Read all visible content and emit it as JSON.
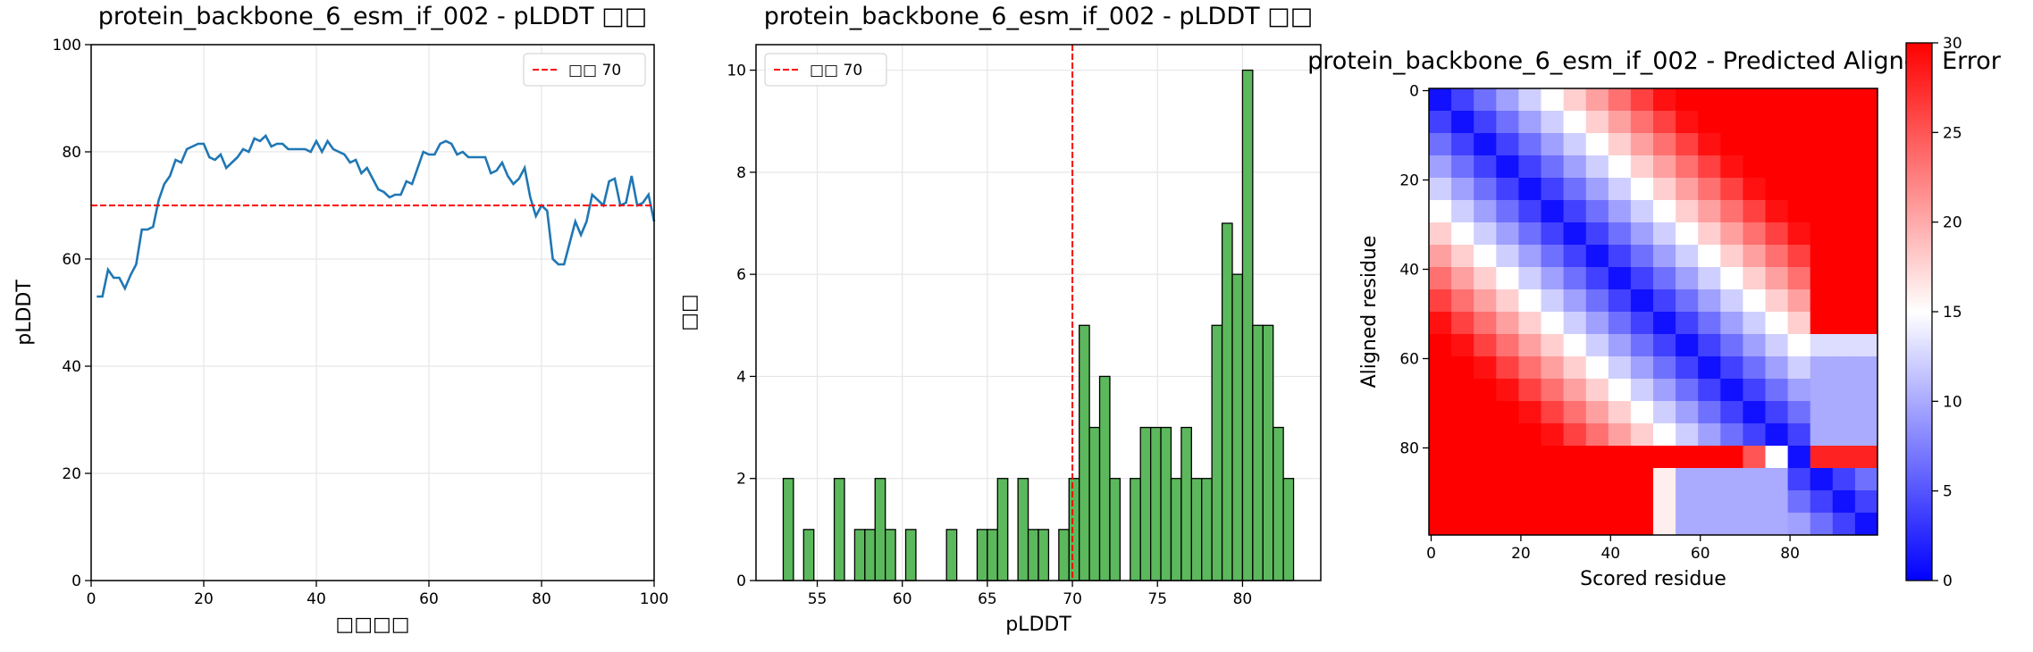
{
  "chart_data": [
    {
      "type": "line",
      "title": "protein_backbone_6_esm_if_002 - pLDDT □□",
      "x_label": "□□□□",
      "y_label": "pLDDT",
      "x": [
        1,
        2,
        3,
        4,
        5,
        6,
        7,
        8,
        9,
        10,
        11,
        12,
        13,
        14,
        15,
        16,
        17,
        18,
        19,
        20,
        21,
        22,
        23,
        24,
        25,
        26,
        27,
        28,
        29,
        30,
        31,
        32,
        33,
        34,
        35,
        36,
        37,
        38,
        39,
        40,
        41,
        42,
        43,
        44,
        45,
        46,
        47,
        48,
        49,
        50,
        51,
        52,
        53,
        54,
        55,
        56,
        57,
        58,
        59,
        60,
        61,
        62,
        63,
        64,
        65,
        66,
        67,
        68,
        69,
        70,
        71,
        72,
        73,
        74,
        75,
        76,
        77,
        78,
        79,
        80,
        81,
        82,
        83,
        84,
        85,
        86,
        87,
        88,
        89,
        90,
        91,
        92,
        93,
        94,
        95,
        96,
        97,
        98,
        99,
        100
      ],
      "values": [
        53,
        53,
        58,
        56.5,
        56.5,
        54.5,
        57,
        59,
        65.5,
        65.5,
        66,
        71,
        74,
        75.5,
        78.5,
        78,
        80.5,
        81,
        81.5,
        81.5,
        79,
        78.5,
        79.5,
        77,
        78,
        79,
        80.5,
        80,
        82.5,
        82,
        83,
        81,
        81.5,
        81.5,
        80.5,
        80.5,
        80.5,
        80.5,
        80,
        82,
        80,
        82,
        80.5,
        80,
        79.5,
        78,
        78.5,
        76,
        77,
        75,
        73,
        72.5,
        71.5,
        72,
        72,
        74.5,
        74,
        77,
        80,
        79.5,
        79.5,
        81.5,
        82,
        81.5,
        79.5,
        80,
        79,
        79,
        79,
        79,
        76,
        76.5,
        78,
        75.5,
        74,
        75,
        77,
        71.5,
        68,
        70,
        69,
        60,
        59,
        59,
        63,
        67,
        64.5,
        67,
        72,
        71,
        70,
        74.5,
        75,
        70,
        70.5,
        75.5,
        70,
        70.5,
        72,
        67
      ],
      "color": "#1f77b4",
      "hline": {
        "value": 70,
        "label": "□□ 70",
        "color": "#ff0000"
      },
      "legend": "upper right",
      "xlim": [
        0,
        100
      ],
      "ylim": [
        0,
        100
      ],
      "xticks": [
        0,
        20,
        40,
        60,
        80,
        100
      ],
      "yticks": [
        0,
        20,
        40,
        60,
        80,
        100
      ],
      "grid": true
    },
    {
      "type": "histogram",
      "title": "protein_backbone_6_esm_if_002 - pLDDT □□",
      "x_label": "pLDDT",
      "y_label": "□□",
      "bins": [
        53,
        53.6,
        54.2,
        54.8,
        55.4,
        56,
        56.6,
        57.2,
        57.8,
        58.4,
        59,
        59.6,
        60.2,
        60.8,
        61.4,
        62,
        62.6,
        63.2,
        63.8,
        64.4,
        65,
        65.6,
        66.2,
        66.8,
        67.4,
        68,
        68.6,
        69.2,
        69.8,
        70.4,
        71,
        71.6,
        72.2,
        72.8,
        73.4,
        74,
        74.6,
        75.2,
        75.8,
        76.4,
        77,
        77.6,
        78.2,
        78.8,
        79.4,
        80,
        80.6,
        81.2,
        81.8,
        82.4,
        83
      ],
      "counts": [
        2,
        0,
        1,
        0,
        0,
        2,
        0,
        1,
        1,
        2,
        1,
        0,
        1,
        0,
        0,
        0,
        1,
        0,
        0,
        1,
        1,
        2,
        0,
        2,
        1,
        1,
        0,
        1,
        2,
        5,
        3,
        4,
        2,
        0,
        2,
        3,
        3,
        3,
        2,
        3,
        2,
        2,
        5,
        7,
        6,
        10,
        5,
        5,
        3,
        2
      ],
      "color": "#5cb85c",
      "edgecolor": "#000000",
      "vline": {
        "value": 70,
        "label": "□□ 70",
        "color": "#ff0000"
      },
      "legend": "upper left",
      "xlim": [
        51.4,
        84.6
      ],
      "ylim": [
        0,
        10.5
      ],
      "xticks": [
        55,
        60,
        65,
        70,
        75,
        80
      ],
      "yticks": [
        0,
        2,
        4,
        6,
        8,
        10
      ],
      "grid": true
    },
    {
      "type": "heatmap",
      "title": "protein_backbone_6_esm_if_002 - Predicted Aligned Error",
      "x_label": "Scored residue",
      "y_label": "Aligned residue",
      "colormap": "bwr",
      "clim": [
        0,
        30
      ],
      "cticks": [
        0,
        5,
        10,
        15,
        20,
        25,
        30
      ],
      "xlim": [
        -0.5,
        99.5
      ],
      "ylim": [
        99.5,
        -0.5
      ],
      "xticks": [
        0,
        20,
        40,
        60,
        80
      ],
      "yticks": [
        0,
        20,
        40,
        60,
        80
      ],
      "matrix": [
        [
          1,
          3.8,
          6.6,
          9.4,
          12.2,
          15,
          17.8,
          20.6,
          23.4,
          26.2,
          29,
          30,
          30,
          30,
          30,
          30,
          30,
          30,
          30,
          30
        ],
        [
          3.8,
          1,
          3.8,
          6.6,
          9.4,
          12.2,
          15,
          17.8,
          20.6,
          23.4,
          26.2,
          29,
          30,
          30,
          30,
          30,
          30,
          30,
          30,
          30
        ],
        [
          6.6,
          3.8,
          1,
          3.8,
          6.6,
          9.4,
          12.2,
          15,
          17.8,
          20.6,
          23.4,
          26.2,
          29,
          30,
          30,
          30,
          30,
          30,
          30,
          30
        ],
        [
          9.4,
          6.6,
          3.8,
          1,
          3.8,
          6.6,
          9.4,
          12.2,
          15,
          17.8,
          20.6,
          23.4,
          26.2,
          29,
          30,
          30,
          30,
          30,
          30,
          30
        ],
        [
          12.2,
          9.4,
          6.6,
          3.8,
          1,
          3.8,
          6.6,
          9.4,
          12.2,
          15,
          17.8,
          20.6,
          23.4,
          26.2,
          29,
          30,
          30,
          30,
          30,
          30
        ],
        [
          15,
          12.2,
          9.4,
          6.6,
          3.8,
          1,
          3.8,
          6.6,
          9.4,
          12.2,
          15,
          17.8,
          20.6,
          23.4,
          26.2,
          29,
          30,
          30,
          30,
          30
        ],
        [
          17.8,
          15,
          12.2,
          9.4,
          6.6,
          3.8,
          1,
          3.8,
          6.6,
          9.4,
          12.2,
          15,
          17.8,
          20.6,
          23.4,
          26.2,
          29,
          30,
          30,
          30
        ],
        [
          20.6,
          17.8,
          15,
          12.2,
          9.4,
          6.6,
          3.8,
          1,
          3.8,
          6.6,
          9.4,
          12.2,
          15,
          17.8,
          20.6,
          23.4,
          26.2,
          30,
          30,
          30
        ],
        [
          23.4,
          20.6,
          17.8,
          15,
          12.2,
          9.4,
          6.6,
          3.8,
          1,
          3.8,
          6.6,
          9.4,
          12.2,
          15,
          17.8,
          20.6,
          23.4,
          30,
          30,
          30
        ],
        [
          26.2,
          23.4,
          20.6,
          17.8,
          15,
          12.2,
          9.4,
          6.6,
          3.8,
          1,
          3.8,
          6.6,
          9.4,
          12.2,
          15,
          17.8,
          20.6,
          30,
          30,
          30
        ],
        [
          29,
          26.2,
          23.4,
          20.6,
          17.8,
          15,
          12.2,
          9.4,
          6.6,
          3.8,
          1,
          3.8,
          6.6,
          9.4,
          12.2,
          15,
          17.8,
          30,
          30,
          30
        ],
        [
          30,
          29,
          26.2,
          23.4,
          20.6,
          17.8,
          15,
          12.2,
          9.4,
          6.6,
          3.8,
          1,
          3.8,
          6.6,
          9.4,
          12.2,
          15,
          13,
          13,
          13
        ],
        [
          30,
          30,
          29,
          26.2,
          23.4,
          20.6,
          17.8,
          15,
          12.2,
          9.4,
          6.6,
          3.8,
          1,
          3.8,
          6.6,
          9.4,
          12.2,
          10,
          10,
          10
        ],
        [
          30,
          30,
          30,
          29,
          26.2,
          23.4,
          20.6,
          17.8,
          15,
          12.2,
          9.4,
          6.6,
          3.8,
          1,
          3.8,
          6.6,
          9.4,
          10,
          10,
          10
        ],
        [
          30,
          30,
          30,
          30,
          29,
          26.2,
          23.4,
          20.6,
          17.8,
          15,
          12.2,
          9.4,
          6.6,
          3.8,
          1,
          3.8,
          6.6,
          10,
          10,
          10
        ],
        [
          30,
          30,
          30,
          30,
          30,
          29,
          26.2,
          23.4,
          20.6,
          17.8,
          15,
          12.2,
          9.4,
          6.6,
          3.8,
          1,
          3.8,
          10,
          10,
          10
        ],
        [
          30,
          30,
          30,
          30,
          30,
          30,
          30,
          30,
          30,
          30,
          30,
          30,
          30,
          30,
          25,
          15,
          1,
          28,
          28,
          28
        ],
        [
          30,
          30,
          30,
          30,
          30,
          30,
          30,
          30,
          30,
          30,
          16,
          10,
          10,
          10,
          10,
          10,
          3.8,
          1,
          3.8,
          6.6
        ],
        [
          30,
          30,
          30,
          30,
          30,
          30,
          30,
          30,
          30,
          30,
          16,
          10,
          10,
          10,
          10,
          10,
          6.6,
          3.8,
          1,
          3.8
        ],
        [
          30,
          30,
          30,
          30,
          30,
          30,
          30,
          30,
          30,
          30,
          16,
          10,
          10,
          10,
          10,
          10,
          9.4,
          6.6,
          3.8,
          1
        ]
      ]
    }
  ]
}
